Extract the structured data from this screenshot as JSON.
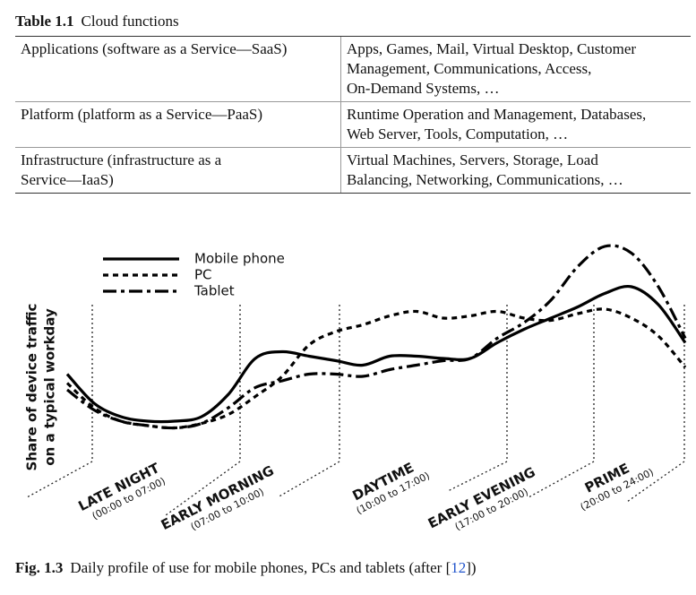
{
  "table": {
    "label": "Table 1.1",
    "title": "Cloud functions",
    "rows": [
      [
        [
          "Applications (software as a Service—SaaS)"
        ],
        [
          "Apps, Games, Mail, Virtual Desktop, Customer",
          "Management, Communications, Access,",
          "On-Demand Systems, …"
        ]
      ],
      [
        [
          "Platform (platform as a Service—PaaS)"
        ],
        [
          "Runtime Operation and Management, Databases,",
          "Web Server, Tools, Computation, …"
        ]
      ],
      [
        [
          "Infrastructure (infrastructure as a",
          "Service—IaaS)"
        ],
        [
          "Virtual Machines, Servers, Storage, Load",
          "Balancing, Networking, Communications, …"
        ]
      ]
    ]
  },
  "figure": {
    "label": "Fig. 1.3",
    "caption": "Daily profile of use for mobile phones, PCs and tablets (after [",
    "reference": "12",
    "caption_end": "])",
    "chart_data": {
      "type": "line",
      "y_label": [
        "Share of device traffic",
        "on a typical workday"
      ],
      "periods": [
        {
          "name": "LATE NIGHT",
          "range": "(00:00 to 07:00)"
        },
        {
          "name": "EARLY MORNING",
          "range": "(07:00 to 10:00)"
        },
        {
          "name": "DAYTIME",
          "range": "(10:00 to 17:00)"
        },
        {
          "name": "EARLY EVENING",
          "range": "(17:00 to 20:00)"
        },
        {
          "name": "PRIME",
          "range": "(20:00 to 24:00)"
        }
      ],
      "ylim": [
        0,
        100
      ],
      "series": [
        {
          "name": "Mobile phone",
          "color": "#000000",
          "style": "solid",
          "values": [
            33,
            20,
            14,
            12,
            12,
            14,
            24,
            40,
            43,
            41,
            39,
            37,
            41,
            41,
            40,
            40,
            47,
            53,
            58,
            63,
            69,
            72,
            64,
            47
          ]
        },
        {
          "name": "PC",
          "color": "#000000",
          "style": "dashed",
          "values": [
            29,
            18,
            12,
            10,
            9,
            11,
            15,
            23,
            32,
            46,
            52,
            55,
            59,
            61,
            58,
            59,
            61,
            58,
            57,
            60,
            62,
            58,
            50,
            36
          ]
        },
        {
          "name": "Tablet",
          "color": "#000000",
          "style": "dashdot",
          "values": [
            26,
            17,
            12,
            10,
            9,
            11,
            18,
            27,
            30,
            33,
            33,
            32,
            35,
            37,
            39,
            40,
            49,
            56,
            66,
            81,
            90,
            87,
            72,
            49
          ]
        }
      ]
    }
  }
}
